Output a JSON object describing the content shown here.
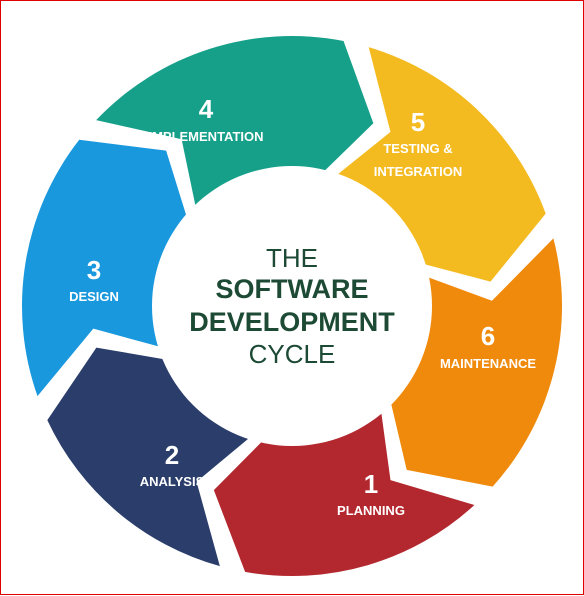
{
  "title": {
    "line1": "THE",
    "line2": "SOFTWARE",
    "line3": "DEVELOPMENT",
    "line4": "CYCLE"
  },
  "colors": {
    "planning": "#b3282e",
    "analysis": "#2b3e6b",
    "design": "#1a98dd",
    "implementation": "#16a08a",
    "testing": "#f4bb21",
    "maintenance": "#f08a0c",
    "title_text": "#1d4a34",
    "border": "#e00000"
  },
  "stages": [
    {
      "number": "1",
      "label_lines": [
        "PLANNING"
      ]
    },
    {
      "number": "2",
      "label_lines": [
        "ANALYSIS"
      ]
    },
    {
      "number": "3",
      "label_lines": [
        "DESIGN"
      ]
    },
    {
      "number": "4",
      "label_lines": [
        "IMPLEMENTATION"
      ]
    },
    {
      "number": "5",
      "label_lines": [
        "TESTING &",
        "INTEGRATION"
      ]
    },
    {
      "number": "6",
      "label_lines": [
        "MAINTENANCE"
      ]
    }
  ]
}
